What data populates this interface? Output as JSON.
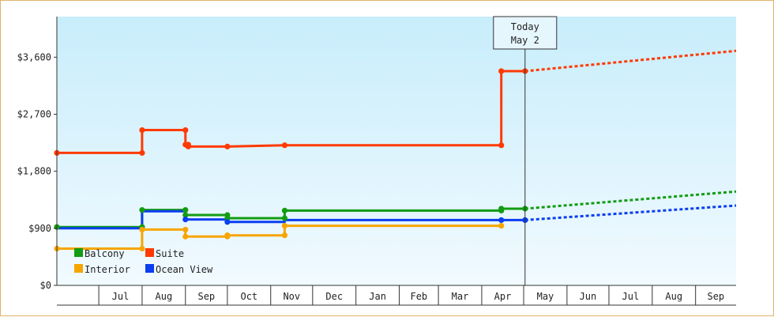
{
  "chart_data": {
    "type": "line",
    "y_ticks": [
      "$0",
      "$900",
      "$1,800",
      "$2,700",
      "$3,600"
    ],
    "y_tick_values": [
      0,
      900,
      1800,
      2700,
      3600
    ],
    "ylim": [
      0,
      4240
    ],
    "x_month_labels": [
      "Jul",
      "Aug",
      "Sep",
      "Oct",
      "Nov",
      "Dec",
      "Jan",
      "Feb",
      "Mar",
      "Apr",
      "May",
      "Jun",
      "Jul",
      "Aug",
      "Sep"
    ],
    "xlim": [
      "2024-06-01",
      "2025-09-30"
    ],
    "today": {
      "line1": "Today",
      "line2": "May 2",
      "date": "2025-05-02"
    },
    "grid": false,
    "legend_position": "bottom-left",
    "series": [
      {
        "name": "Suite",
        "color": "#ff3a00",
        "points": [
          [
            "2024-06-01",
            2090
          ],
          [
            "2024-08-01",
            2090
          ],
          [
            "2024-08-01",
            2450
          ],
          [
            "2024-09-01",
            2450
          ],
          [
            "2024-09-01",
            2220
          ],
          [
            "2024-09-03",
            2220
          ],
          [
            "2024-09-03",
            2190
          ],
          [
            "2024-10-01",
            2190
          ],
          [
            "2024-11-11",
            2210
          ],
          [
            "2025-04-15",
            2210
          ],
          [
            "2025-04-15",
            3380
          ],
          [
            "2025-05-02",
            3380
          ]
        ],
        "projection": [
          [
            "2025-05-02",
            3380
          ],
          [
            "2025-09-30",
            3700
          ]
        ]
      },
      {
        "name": "Balcony",
        "color": "#129c12",
        "points": [
          [
            "2024-06-01",
            920
          ],
          [
            "2024-08-01",
            920
          ],
          [
            "2024-08-01",
            1190
          ],
          [
            "2024-09-01",
            1190
          ],
          [
            "2024-09-01",
            1110
          ],
          [
            "2024-10-01",
            1110
          ],
          [
            "2024-10-01",
            1060
          ],
          [
            "2024-11-11",
            1060
          ],
          [
            "2024-11-11",
            1180
          ],
          [
            "2025-04-15",
            1180
          ],
          [
            "2025-04-15",
            1210
          ],
          [
            "2025-05-02",
            1210
          ]
        ],
        "projection": [
          [
            "2025-05-02",
            1210
          ],
          [
            "2025-09-30",
            1480
          ]
        ]
      },
      {
        "name": "Ocean View",
        "color": "#0a3ef0",
        "points": [
          [
            "2024-06-01",
            900
          ],
          [
            "2024-08-01",
            900
          ],
          [
            "2024-08-01",
            1170
          ],
          [
            "2024-09-01",
            1170
          ],
          [
            "2024-09-01",
            1040
          ],
          [
            "2024-10-01",
            1040
          ],
          [
            "2024-10-01",
            1000
          ],
          [
            "2024-11-11",
            1000
          ],
          [
            "2024-11-11",
            1030
          ],
          [
            "2025-04-15",
            1030
          ],
          [
            "2025-05-02",
            1030
          ]
        ],
        "projection": [
          [
            "2025-05-02",
            1030
          ],
          [
            "2025-09-30",
            1260
          ]
        ]
      },
      {
        "name": "Interior",
        "color": "#f7a500",
        "points": [
          [
            "2024-06-01",
            580
          ],
          [
            "2024-08-01",
            580
          ],
          [
            "2024-08-01",
            880
          ],
          [
            "2024-09-01",
            880
          ],
          [
            "2024-09-01",
            770
          ],
          [
            "2024-10-01",
            770
          ],
          [
            "2024-10-01",
            790
          ],
          [
            "2024-11-11",
            790
          ],
          [
            "2024-11-11",
            940
          ],
          [
            "2025-04-15",
            940
          ]
        ],
        "projection": []
      }
    ],
    "markers": [
      {
        "series": "Suite",
        "points": [
          [
            "2024-06-01",
            2090
          ],
          [
            "2024-08-01",
            2090
          ],
          [
            "2024-08-01",
            2450
          ],
          [
            "2024-09-01",
            2450
          ],
          [
            "2024-09-01",
            2220
          ],
          [
            "2024-09-03",
            2220
          ],
          [
            "2024-09-03",
            2190
          ],
          [
            "2024-10-01",
            2190
          ],
          [
            "2024-11-11",
            2210
          ],
          [
            "2025-04-15",
            2210
          ],
          [
            "2025-04-15",
            3380
          ],
          [
            "2025-05-02",
            3380
          ]
        ]
      },
      {
        "series": "Balcony",
        "points": [
          [
            "2024-06-01",
            920
          ],
          [
            "2024-08-01",
            920
          ],
          [
            "2024-08-01",
            1190
          ],
          [
            "2024-09-01",
            1190
          ],
          [
            "2024-09-01",
            1110
          ],
          [
            "2024-10-01",
            1110
          ],
          [
            "2024-10-01",
            1060
          ],
          [
            "2024-11-11",
            1060
          ],
          [
            "2024-11-11",
            1180
          ],
          [
            "2025-04-15",
            1180
          ],
          [
            "2025-04-15",
            1210
          ],
          [
            "2025-05-02",
            1210
          ]
        ]
      },
      {
        "series": "Ocean View",
        "points": [
          [
            "2024-09-01",
            1040
          ],
          [
            "2024-10-01",
            1000
          ],
          [
            "2025-04-15",
            1030
          ],
          [
            "2025-05-02",
            1030
          ]
        ]
      },
      {
        "series": "Interior",
        "points": [
          [
            "2024-06-01",
            580
          ],
          [
            "2024-08-01",
            580
          ],
          [
            "2024-08-01",
            880
          ],
          [
            "2024-09-01",
            880
          ],
          [
            "2024-09-01",
            770
          ],
          [
            "2024-10-01",
            770
          ],
          [
            "2024-10-01",
            790
          ],
          [
            "2024-11-11",
            790
          ],
          [
            "2024-11-11",
            940
          ],
          [
            "2025-04-15",
            940
          ]
        ]
      }
    ],
    "legend": [
      {
        "name": "Balcony",
        "color": "#129c12"
      },
      {
        "name": "Suite",
        "color": "#ff3a00"
      },
      {
        "name": "Interior",
        "color": "#f7a500"
      },
      {
        "name": "Ocean View",
        "color": "#0a3ef0"
      }
    ]
  }
}
